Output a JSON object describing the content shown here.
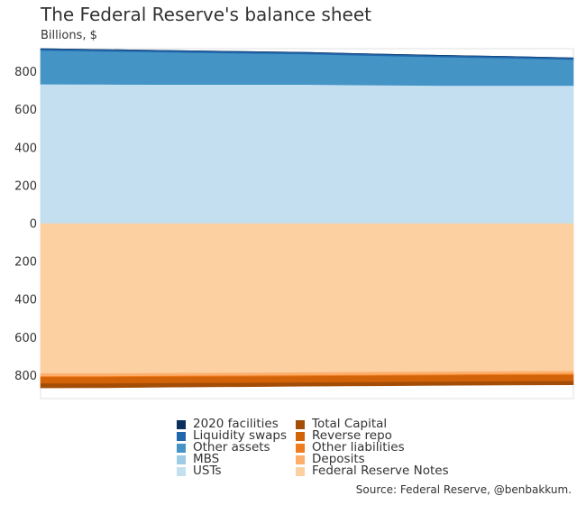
{
  "chart_data": {
    "type": "area",
    "title": "The Federal Reserve's balance sheet",
    "subtitle": "Billions, $",
    "source": "Source: Federal Reserve, @benbakkum.",
    "y_ticks_top": [
      "800",
      "600",
      "400",
      "200",
      "0"
    ],
    "y_ticks_bottom": [
      "200",
      "400",
      "600",
      "800"
    ],
    "ylim_assets": [
      0,
      910
    ],
    "ylim_liabilities": [
      0,
      910
    ],
    "x": [
      0,
      1,
      2,
      3,
      4,
      5,
      6,
      7,
      8
    ],
    "asset_series": [
      {
        "name": "USTs",
        "color": "#c3dff0",
        "values": [
          735,
          734,
          733,
          733,
          733,
          730,
          728,
          728,
          728
        ]
      },
      {
        "name": "MBS",
        "color": "#9fcbe4",
        "values": [
          0,
          0,
          0,
          0,
          0,
          0,
          0,
          0,
          0
        ]
      },
      {
        "name": "Other assets",
        "color": "#4594c6",
        "values": [
          178,
          174,
          170,
          165,
          160,
          155,
          150,
          144,
          136
        ]
      },
      {
        "name": "Liquidity swaps",
        "color": "#2166ac",
        "values": [
          9,
          9,
          9,
          9,
          9,
          9,
          9,
          9,
          9
        ]
      },
      {
        "name": "2020 facilities",
        "color": "#0b2f5b",
        "values": [
          0,
          0,
          0,
          0,
          0,
          0,
          0,
          0,
          0
        ]
      }
    ],
    "liability_series": [
      {
        "name": "Federal Reserve Notes",
        "color": "#fdd0a2",
        "values": [
          790,
          790,
          788,
          787,
          785,
          783,
          781,
          779,
          778
        ]
      },
      {
        "name": "Deposits",
        "color": "#fdae6b",
        "values": [
          15,
          15,
          15,
          15,
          15,
          15,
          15,
          15,
          15
        ]
      },
      {
        "name": "Other liabilities",
        "color": "#f07c1e",
        "values": [
          5,
          5,
          5,
          5,
          5,
          5,
          5,
          5,
          5
        ]
      },
      {
        "name": "Reverse repo",
        "color": "#d36309",
        "values": [
          33,
          33,
          33,
          33,
          33,
          33,
          33,
          33,
          33
        ]
      },
      {
        "name": "Total Capital",
        "color": "#a34d06",
        "values": [
          22,
          21,
          20,
          19,
          18,
          18,
          18,
          18,
          18
        ]
      }
    ],
    "legend_position": "bottom",
    "legend": [
      {
        "name": "2020 facilities",
        "color": "#0b2f5b"
      },
      {
        "name": "Total Capital",
        "color": "#a34d06"
      },
      {
        "name": "Liquidity swaps",
        "color": "#2166ac"
      },
      {
        "name": "Reverse repo",
        "color": "#d36309"
      },
      {
        "name": "Other assets",
        "color": "#4594c6"
      },
      {
        "name": "Other liabilities",
        "color": "#f07c1e"
      },
      {
        "name": "MBS",
        "color": "#9fcbe4"
      },
      {
        "name": "Deposits",
        "color": "#fdae6b"
      },
      {
        "name": "USTs",
        "color": "#c3dff0"
      },
      {
        "name": "Federal Reserve Notes",
        "color": "#fdd0a2"
      }
    ]
  }
}
